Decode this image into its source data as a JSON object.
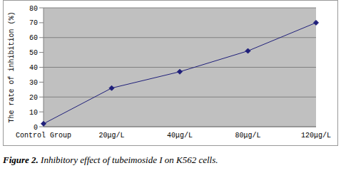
{
  "chart_data": {
    "type": "line",
    "title": "Figure 2. Inhibitory effect of tubeimoside I on K562 cells.",
    "y_label": "The rate of inhibition (%)",
    "categories": [
      "Control Group",
      "20μg/L",
      "40μg/L",
      "80μg/L",
      "120μg/L"
    ],
    "values": [
      2,
      26,
      37,
      51,
      70
    ],
    "color": "#1f1f7a",
    "marker": "diamond",
    "ylim": [
      0,
      80
    ],
    "yticks": [
      0,
      10,
      20,
      30,
      40,
      50,
      60,
      70,
      80
    ],
    "grid": true
  }
}
